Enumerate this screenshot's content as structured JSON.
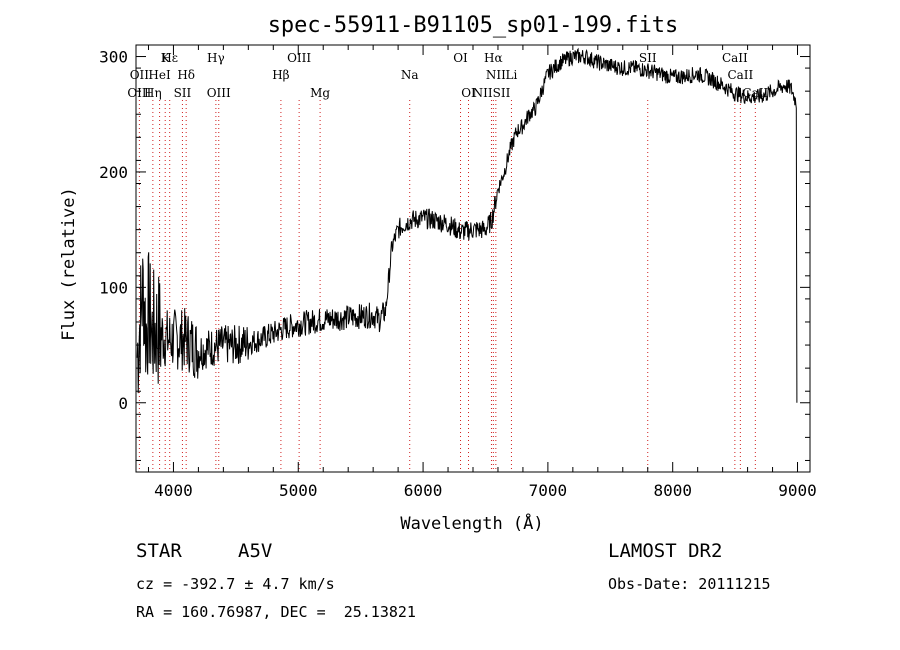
{
  "chart_data": {
    "type": "line",
    "title": "spec-55911-B91105_sp01-199.fits",
    "xlabel": "Wavelength (Å)",
    "ylabel": "Flux (relative)",
    "xlim": [
      3700,
      9100
    ],
    "ylim": [
      -60,
      310
    ],
    "xticks": [
      4000,
      5000,
      6000,
      7000,
      8000,
      9000
    ],
    "yticks": [
      0,
      100,
      200,
      300
    ],
    "grid": false,
    "series": [
      {
        "name": "flux",
        "x": [
          3710,
          3740,
          3760,
          3780,
          3800,
          3830,
          3860,
          3900,
          3950,
          4000,
          4050,
          4100,
          4150,
          4200,
          4300,
          4400,
          4500,
          4600,
          4700,
          4800,
          4900,
          5000,
          5100,
          5200,
          5300,
          5400,
          5500,
          5600,
          5650,
          5700,
          5750,
          5800,
          5850,
          5900,
          6000,
          6100,
          6200,
          6300,
          6400,
          6500,
          6550,
          6600,
          6650,
          6700,
          6750,
          6800,
          6850,
          6900,
          6950,
          7000,
          7050,
          7100,
          7200,
          7300,
          7400,
          7500,
          7600,
          7700,
          7800,
          7900,
          8000,
          8100,
          8200,
          8300,
          8400,
          8500,
          8600,
          8700,
          8800,
          8900,
          8950,
          8990,
          8995
        ],
        "y": [
          40,
          80,
          100,
          60,
          80,
          60,
          65,
          60,
          55,
          55,
          55,
          55,
          50,
          45,
          48,
          50,
          50,
          52,
          55,
          60,
          65,
          68,
          70,
          72,
          73,
          74,
          75,
          76,
          72,
          80,
          135,
          150,
          155,
          158,
          160,
          158,
          155,
          148,
          150,
          150,
          158,
          185,
          200,
          220,
          235,
          240,
          250,
          255,
          270,
          285,
          290,
          295,
          300,
          300,
          295,
          292,
          290,
          290,
          288,
          285,
          282,
          283,
          285,
          281,
          275,
          268,
          265,
          265,
          270,
          275,
          272,
          260,
          0
        ]
      }
    ],
    "line_markers": [
      {
        "label": "Hε",
        "x": 3970,
        "row": 0
      },
      {
        "label": "K",
        "x": 3934,
        "row": 0
      },
      {
        "label": "OII",
        "x": 3727,
        "row": 1
      },
      {
        "label": "HeI",
        "x": 3889,
        "row": 1
      },
      {
        "label": "Hδ",
        "x": 4102,
        "row": 1
      },
      {
        "label": "OIII",
        "x": 3727,
        "row": 2
      },
      {
        "label": "Hη",
        "x": 3835,
        "row": 2
      },
      {
        "label": "SII",
        "x": 4072,
        "row": 2
      },
      {
        "label": "Hγ",
        "x": 4340,
        "row": 0
      },
      {
        "label": "OIII",
        "x": 4363,
        "row": 2
      },
      {
        "label": "OIII",
        "x": 5007,
        "row": 0
      },
      {
        "label": "Hβ",
        "x": 4861,
        "row": 1
      },
      {
        "label": "Mg",
        "x": 5175,
        "row": 2
      },
      {
        "label": "Na",
        "x": 5893,
        "row": 1
      },
      {
        "label": "OI",
        "x": 6300,
        "row": 0
      },
      {
        "label": "OI",
        "x": 6364,
        "row": 2
      },
      {
        "label": "Hα",
        "x": 6563,
        "row": 0
      },
      {
        "label": "NII",
        "x": 6583,
        "row": 1
      },
      {
        "label": "Li",
        "x": 6708,
        "row": 1
      },
      {
        "label": "NIISII",
        "x": 6548,
        "row": 2
      },
      {
        "label": "SII",
        "x": 7800,
        "row": 0
      },
      {
        "label": "CaII",
        "x": 8498,
        "row": 0
      },
      {
        "label": "CaII",
        "x": 8542,
        "row": 1
      },
      {
        "label": "CaII",
        "x": 8662,
        "row": 2
      }
    ]
  },
  "info": {
    "object_class": "STAR",
    "subclass": "A5V",
    "survey": "LAMOST DR2",
    "cz": "cz = -392.7 ± 4.7 km/s",
    "obs_date": "Obs-Date: 20111215",
    "radec": "RA = 160.76987, DEC =  25.13821"
  }
}
